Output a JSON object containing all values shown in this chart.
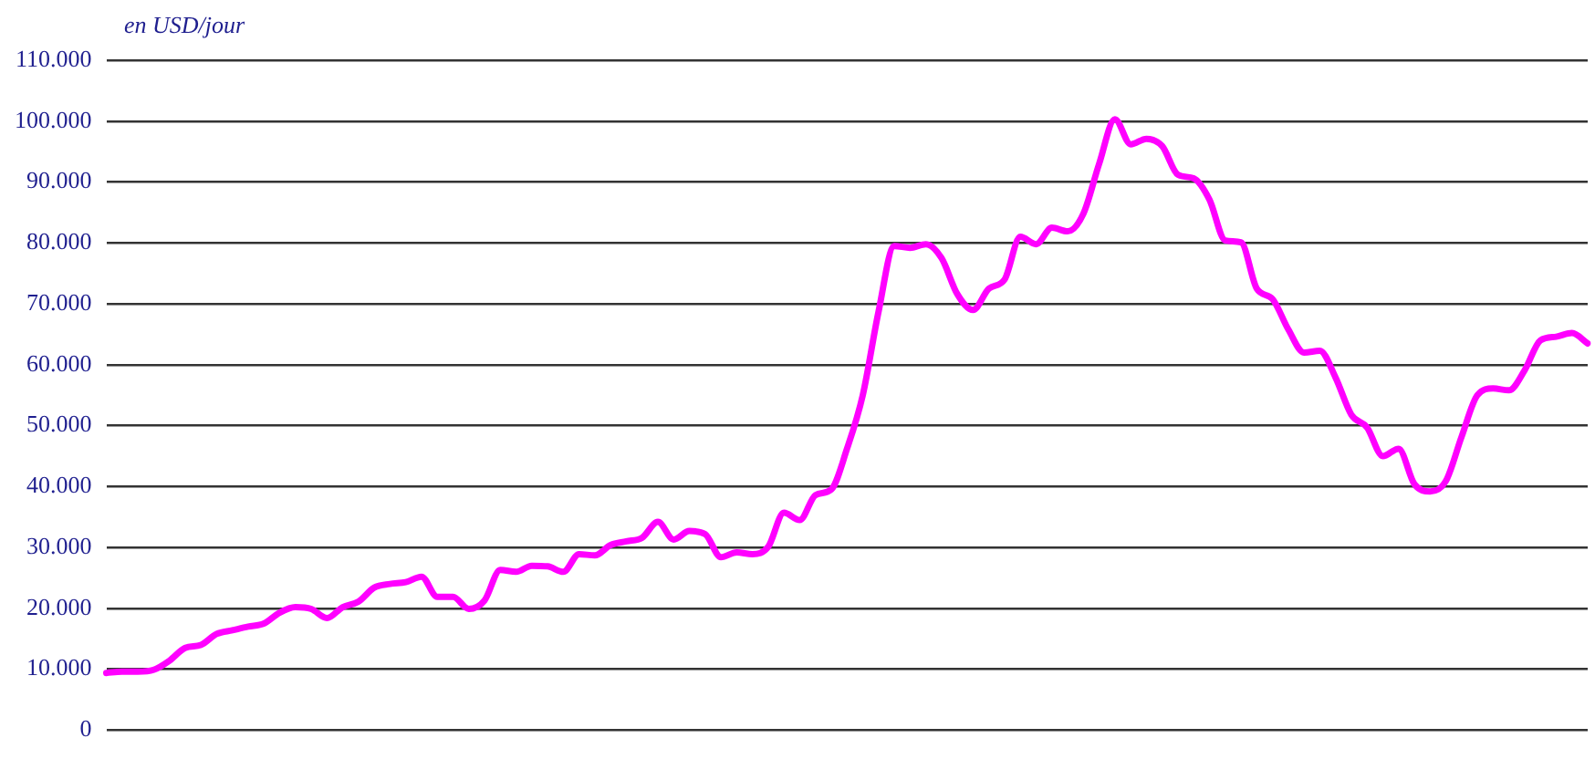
{
  "chart_data": {
    "type": "line",
    "ylabel": "en USD/jour",
    "categories": [
      null,
      null,
      null,
      null,
      null,
      null,
      null,
      null,
      null,
      null,
      null,
      null,
      null,
      null,
      null,
      null,
      null,
      null,
      null,
      null,
      null,
      null,
      null,
      null,
      null,
      null,
      null,
      null,
      null,
      null,
      null,
      null,
      null,
      null,
      null,
      null,
      null,
      null,
      null,
      null,
      null,
      null,
      null,
      null,
      null,
      null,
      null,
      null,
      null,
      null,
      null,
      null,
      null,
      null,
      null,
      null,
      null,
      null,
      null,
      null,
      null,
      null,
      null,
      null,
      null,
      null,
      null,
      null,
      null,
      null,
      null,
      null,
      null,
      null,
      null,
      null,
      null,
      null,
      null,
      null,
      null,
      null,
      null,
      null,
      null,
      null,
      null,
      null,
      null,
      null,
      null,
      null,
      null,
      null,
      null
    ],
    "series": [
      {
        "color": "#ff00ff",
        "values": [
          9400,
          9600,
          9600,
          9900,
          11400,
          13500,
          14000,
          15800,
          16400,
          17000,
          17500,
          19300,
          20200,
          19900,
          18400,
          20200,
          21100,
          23400,
          24000,
          24300,
          25200,
          21900,
          21900,
          19900,
          21300,
          26300,
          26000,
          27000,
          26900,
          26000,
          28900,
          28700,
          30400,
          31000,
          31600,
          34200,
          31300,
          32700,
          32200,
          28400,
          29200,
          28900,
          30100,
          35700,
          34500,
          38600,
          39500,
          46200,
          55000,
          68700,
          79500,
          79200,
          79800,
          77500,
          71600,
          69000,
          72500,
          74000,
          81000,
          79800,
          82500,
          81900,
          84800,
          93000,
          100300,
          96200,
          97100,
          95900,
          91200,
          90600,
          87100,
          80400,
          80100,
          72500,
          70800,
          65800,
          62000,
          62300,
          57900,
          51800,
          49700,
          45000,
          46200,
          40400,
          39200,
          40900,
          48200,
          55000,
          56100,
          55800,
          59100,
          64000,
          64600,
          65200,
          63500
        ]
      }
    ],
    "ylim": [
      0,
      110000
    ],
    "yticks": [
      {
        "value": 0,
        "label": "0"
      },
      {
        "value": 10000,
        "label": "10.000"
      },
      {
        "value": 20000,
        "label": "20.000"
      },
      {
        "value": 30000,
        "label": "30.000"
      },
      {
        "value": 40000,
        "label": "40.000"
      },
      {
        "value": 50000,
        "label": "50.000"
      },
      {
        "value": 60000,
        "label": "60.000"
      },
      {
        "value": 70000,
        "label": "70.000"
      },
      {
        "value": 80000,
        "label": "80.000"
      },
      {
        "value": 90000,
        "label": "90.000"
      },
      {
        "value": 100000,
        "label": "100.000"
      },
      {
        "value": 110000,
        "label": "110.000"
      }
    ],
    "grid": "y",
    "legend": false,
    "marker": "none",
    "line_style": "solid",
    "tick_labels": "y"
  }
}
